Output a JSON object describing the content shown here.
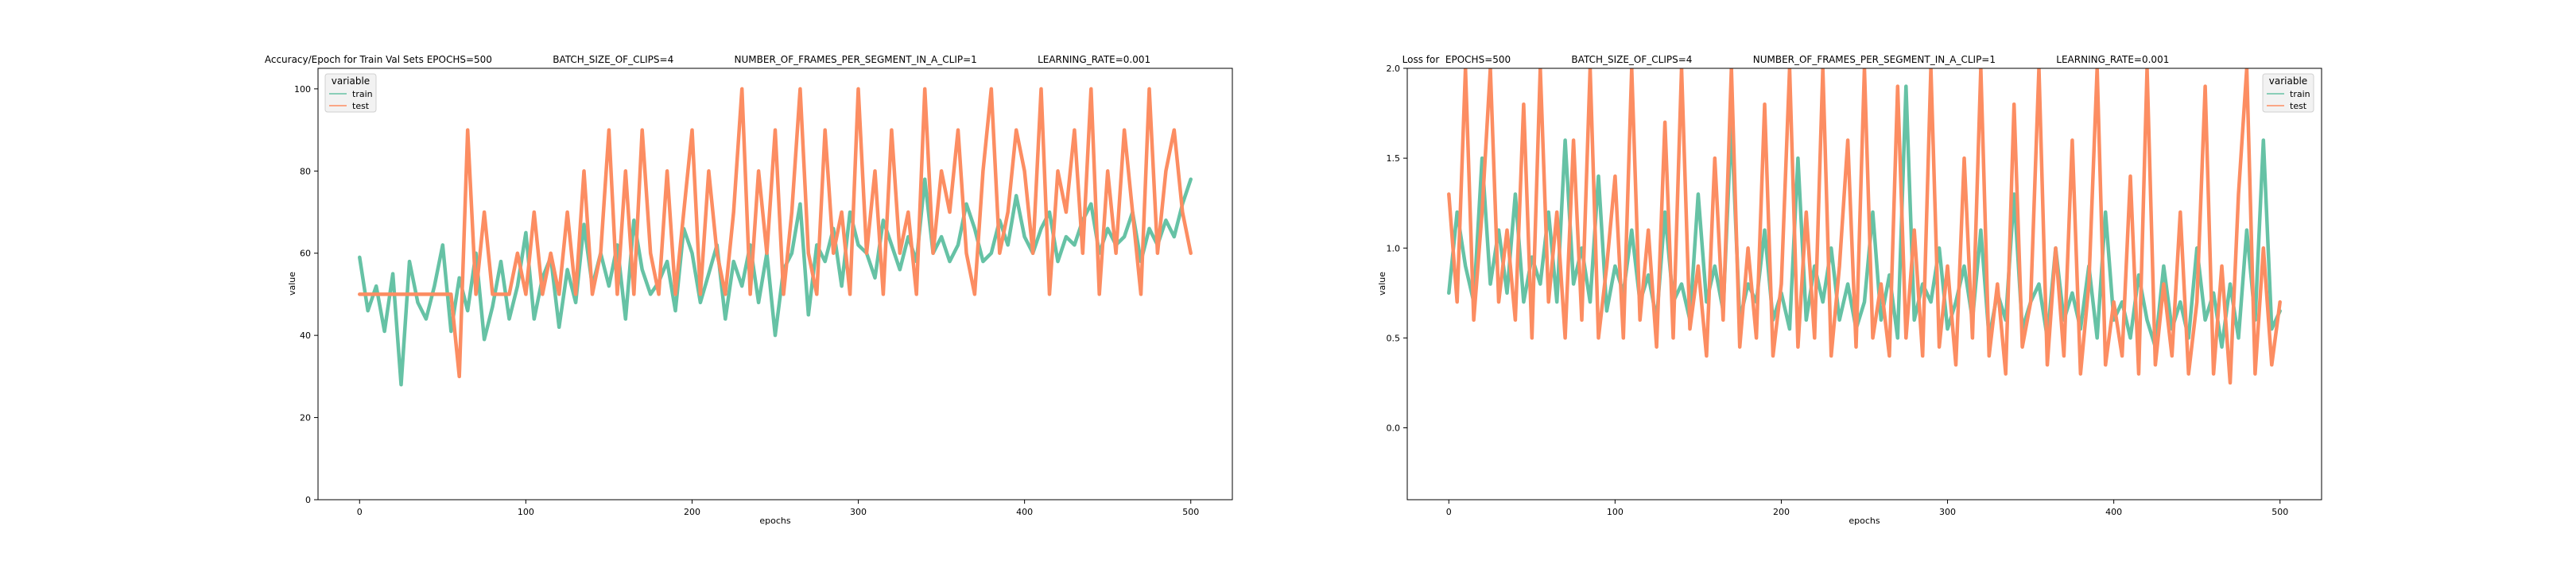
{
  "colors": {
    "train": "#66c2a5",
    "test": "#fc8d62",
    "axes": "#000000",
    "legend_bg": "#f2f2f2"
  },
  "chart_data": [
    {
      "type": "line",
      "title": "Accuracy/Epoch for Train Val Sets EPOCHS=500                    BATCH_SIZE_OF_CLIPS=4                    NUMBER_OF_FRAMES_PER_SEGMENT_IN_A_CLIP=1                    LEARNING_RATE=0.001",
      "xlabel": "epochs",
      "ylabel": "value",
      "xlim": [
        -25,
        525
      ],
      "ylim": [
        0,
        105
      ],
      "xticks": [
        "0",
        "100",
        "200",
        "300",
        "400",
        "500"
      ],
      "xtick_values": [
        0,
        100,
        200,
        300,
        400,
        500
      ],
      "yticks": [
        "0",
        "20",
        "40",
        "60",
        "80",
        "100"
      ],
      "ytick_values": [
        0,
        20,
        40,
        60,
        80,
        100
      ],
      "grid": false,
      "legend": {
        "title": "variable",
        "placement": "top-left",
        "entries": [
          "train",
          "test"
        ]
      },
      "series": [
        {
          "name": "train",
          "x": [
            0,
            5,
            10,
            15,
            20,
            25,
            30,
            35,
            40,
            45,
            50,
            55,
            60,
            65,
            70,
            75,
            80,
            85,
            90,
            95,
            100,
            105,
            110,
            115,
            120,
            125,
            130,
            135,
            140,
            145,
            150,
            155,
            160,
            165,
            170,
            175,
            180,
            185,
            190,
            195,
            200,
            205,
            210,
            215,
            220,
            225,
            230,
            235,
            240,
            245,
            250,
            255,
            260,
            265,
            270,
            275,
            280,
            285,
            290,
            295,
            300,
            305,
            310,
            315,
            320,
            325,
            330,
            335,
            340,
            345,
            350,
            355,
            360,
            365,
            370,
            375,
            380,
            385,
            390,
            395,
            400,
            405,
            410,
            415,
            420,
            425,
            430,
            435,
            440,
            445,
            450,
            455,
            460,
            465,
            470,
            475,
            480,
            485,
            490,
            495,
            500
          ],
          "values": [
            59,
            46,
            52,
            41,
            55,
            28,
            58,
            48,
            44,
            52,
            62,
            41,
            54,
            46,
            60,
            39,
            47,
            58,
            44,
            52,
            65,
            44,
            54,
            59,
            42,
            56,
            48,
            67,
            52,
            60,
            52,
            62,
            44,
            68,
            56,
            50,
            53,
            58,
            46,
            66,
            60,
            48,
            55,
            62,
            44,
            58,
            52,
            62,
            48,
            60,
            40,
            56,
            60,
            72,
            45,
            62,
            58,
            66,
            52,
            70,
            62,
            60,
            54,
            68,
            62,
            56,
            64,
            58,
            78,
            60,
            64,
            58,
            62,
            72,
            66,
            58,
            60,
            68,
            62,
            74,
            64,
            60,
            66,
            70,
            58,
            64,
            62,
            68,
            72,
            60,
            66,
            62,
            64,
            70,
            58,
            66,
            62,
            68,
            64,
            72,
            78
          ]
        },
        {
          "name": "test",
          "x": [
            0,
            5,
            10,
            15,
            20,
            25,
            30,
            35,
            40,
            45,
            50,
            55,
            60,
            65,
            70,
            75,
            80,
            85,
            90,
            95,
            100,
            105,
            110,
            115,
            120,
            125,
            130,
            135,
            140,
            145,
            150,
            155,
            160,
            165,
            170,
            175,
            180,
            185,
            190,
            195,
            200,
            205,
            210,
            215,
            220,
            225,
            230,
            235,
            240,
            245,
            250,
            255,
            260,
            265,
            270,
            275,
            280,
            285,
            290,
            295,
            300,
            305,
            310,
            315,
            320,
            325,
            330,
            335,
            340,
            345,
            350,
            355,
            360,
            365,
            370,
            375,
            380,
            385,
            390,
            395,
            400,
            405,
            410,
            415,
            420,
            425,
            430,
            435,
            440,
            445,
            450,
            455,
            460,
            465,
            470,
            475,
            480,
            485,
            490,
            495,
            500
          ],
          "values": [
            50,
            50,
            50,
            50,
            50,
            50,
            50,
            50,
            50,
            50,
            50,
            50,
            30,
            90,
            50,
            70,
            50,
            50,
            50,
            60,
            50,
            70,
            50,
            60,
            50,
            70,
            50,
            80,
            50,
            60,
            90,
            50,
            80,
            50,
            90,
            60,
            50,
            80,
            50,
            70,
            90,
            50,
            80,
            60,
            50,
            70,
            100,
            50,
            80,
            60,
            90,
            50,
            70,
            100,
            60,
            50,
            90,
            60,
            70,
            50,
            100,
            60,
            80,
            50,
            90,
            60,
            70,
            50,
            100,
            60,
            80,
            70,
            90,
            60,
            50,
            80,
            100,
            60,
            70,
            90,
            80,
            60,
            100,
            50,
            80,
            70,
            90,
            60,
            100,
            50,
            80,
            60,
            90,
            70,
            50,
            100,
            60,
            80,
            90,
            70,
            60
          ]
        }
      ]
    },
    {
      "type": "line",
      "title": "Loss for  EPOCHS=500                    BATCH_SIZE_OF_CLIPS=4                    NUMBER_OF_FRAMES_PER_SEGMENT_IN_A_CLIP=1                    LEARNING_RATE=0.001",
      "xlabel": "epochs",
      "ylabel": "value",
      "xlim": [
        -25,
        525
      ],
      "ylim": [
        -0.4,
        2.0
      ],
      "xticks": [
        "0",
        "100",
        "200",
        "300",
        "400",
        "500"
      ],
      "xtick_values": [
        0,
        100,
        200,
        300,
        400,
        500
      ],
      "yticks": [
        "0.0",
        "0.5",
        "1.0",
        "1.5",
        "2.0"
      ],
      "ytick_values": [
        0.0,
        0.5,
        1.0,
        1.5,
        2.0
      ],
      "grid": false,
      "legend": {
        "title": "variable",
        "placement": "top-right",
        "entries": [
          "train",
          "test"
        ]
      },
      "series": [
        {
          "name": "train",
          "x": [
            0,
            5,
            10,
            15,
            20,
            25,
            30,
            35,
            40,
            45,
            50,
            55,
            60,
            65,
            70,
            75,
            80,
            85,
            90,
            95,
            100,
            105,
            110,
            115,
            120,
            125,
            130,
            135,
            140,
            145,
            150,
            155,
            160,
            165,
            170,
            175,
            180,
            185,
            190,
            195,
            200,
            205,
            210,
            215,
            220,
            225,
            230,
            235,
            240,
            245,
            250,
            255,
            260,
            265,
            270,
            275,
            280,
            285,
            290,
            295,
            300,
            305,
            310,
            315,
            320,
            325,
            330,
            335,
            340,
            345,
            350,
            355,
            360,
            365,
            370,
            375,
            380,
            385,
            390,
            395,
            400,
            405,
            410,
            415,
            420,
            425,
            430,
            435,
            440,
            445,
            450,
            455,
            460,
            465,
            470,
            475,
            480,
            485,
            490,
            495,
            500
          ],
          "values": [
            0.75,
            1.2,
            0.9,
            0.7,
            1.5,
            0.8,
            1.1,
            0.75,
            1.3,
            0.7,
            0.95,
            0.8,
            1.2,
            0.7,
            1.6,
            0.8,
            1.0,
            0.7,
            1.4,
            0.65,
            0.9,
            0.75,
            1.1,
            0.7,
            0.85,
            0.6,
            1.2,
            0.7,
            0.8,
            0.6,
            1.3,
            0.7,
            0.9,
            0.65,
            1.7,
            0.6,
            0.8,
            0.7,
            1.1,
            0.6,
            0.75,
            0.55,
            1.5,
            0.6,
            0.9,
            0.7,
            1.0,
            0.6,
            0.8,
            0.55,
            0.7,
            1.2,
            0.6,
            0.85,
            0.5,
            1.9,
            0.6,
            0.8,
            0.7,
            1.0,
            0.55,
            0.7,
            0.9,
            0.6,
            1.1,
            0.5,
            0.75,
            0.6,
            1.3,
            0.55,
            0.7,
            0.8,
            0.5,
            1.0,
            0.6,
            0.75,
            0.55,
            0.9,
            0.5,
            1.2,
            0.6,
            0.7,
            0.5,
            0.85,
            0.6,
            0.45,
            0.9,
            0.55,
            0.7,
            0.5,
            1.0,
            0.6,
            0.75,
            0.45,
            0.8,
            0.5,
            1.1,
            0.6,
            1.6,
            0.55,
            0.65
          ]
        },
        {
          "name": "test",
          "x": [
            0,
            5,
            10,
            15,
            20,
            25,
            30,
            35,
            40,
            45,
            50,
            55,
            60,
            65,
            70,
            75,
            80,
            85,
            90,
            95,
            100,
            105,
            110,
            115,
            120,
            125,
            130,
            135,
            140,
            145,
            150,
            155,
            160,
            165,
            170,
            175,
            180,
            185,
            190,
            195,
            200,
            205,
            210,
            215,
            220,
            225,
            230,
            235,
            240,
            245,
            250,
            255,
            260,
            265,
            270,
            275,
            280,
            285,
            290,
            295,
            300,
            305,
            310,
            315,
            320,
            325,
            330,
            335,
            340,
            345,
            350,
            355,
            360,
            365,
            370,
            375,
            380,
            385,
            390,
            395,
            400,
            405,
            410,
            415,
            420,
            425,
            430,
            435,
            440,
            445,
            450,
            455,
            460,
            465,
            470,
            475,
            480,
            485,
            490,
            495,
            500
          ],
          "values": [
            1.3,
            0.7,
            2.0,
            0.6,
            1.2,
            2.0,
            0.7,
            1.1,
            0.6,
            1.8,
            0.5,
            2.0,
            0.7,
            1.2,
            0.5,
            1.6,
            0.6,
            2.0,
            0.5,
            0.9,
            1.4,
            0.5,
            2.0,
            0.6,
            1.1,
            0.45,
            1.7,
            0.5,
            2.0,
            0.55,
            0.9,
            0.4,
            1.5,
            0.6,
            2.0,
            0.45,
            1.0,
            0.5,
            1.8,
            0.4,
            0.8,
            2.0,
            0.45,
            1.2,
            0.5,
            2.0,
            0.4,
            0.9,
            1.6,
            0.45,
            2.0,
            0.5,
            0.8,
            0.4,
            1.9,
            0.5,
            1.1,
            0.4,
            2.0,
            0.45,
            0.9,
            0.35,
            1.5,
            0.5,
            2.0,
            0.4,
            0.8,
            0.3,
            1.8,
            0.45,
            0.7,
            2.0,
            0.35,
            1.0,
            0.4,
            1.6,
            0.3,
            0.8,
            2.0,
            0.35,
            0.7,
            0.4,
            1.4,
            0.3,
            2.0,
            0.35,
            0.8,
            0.4,
            1.2,
            0.3,
            0.7,
            1.9,
            0.3,
            0.9,
            0.25,
            1.3,
            2.0,
            0.3,
            1.0,
            0.35,
            0.7
          ]
        }
      ]
    }
  ]
}
